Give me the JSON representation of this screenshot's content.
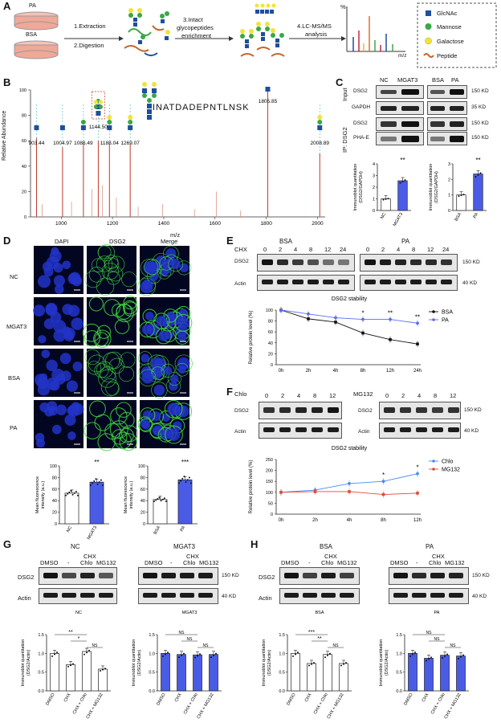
{
  "panels": {
    "A": "A",
    "B": "B",
    "C": "C",
    "D": "D",
    "E": "E",
    "F": "F",
    "G": "G",
    "H": "H"
  },
  "panelA": {
    "dish1": "PA",
    "dish2": "BSA",
    "steps": [
      "1.Extraction",
      "2.Digestion",
      "3.Intact glycopeptides enrichment",
      "4.LC-MS/MS analysis"
    ],
    "step3_l1": "3.Intact",
    "step3_l2": "glycopeptides",
    "step3_l3": "enrichment",
    "step4_l1": "4.LC-MS/MS",
    "step4_l2": "analysis",
    "axis_y": "%",
    "axis_x": "m/z",
    "legend": [
      {
        "label": "GlcNAc",
        "color": "#1f4e9c"
      },
      {
        "label": "Mannose",
        "color": "#3aa845"
      },
      {
        "label": "Galactose",
        "color": "#f2e33a"
      },
      {
        "label": "Peptide",
        "color": "#c86428"
      }
    ]
  },
  "panelB": {
    "ylabel": "Relative Abundance",
    "xlabel": "m/z",
    "peptide": "INATDADEPNTLNSK",
    "peak_labels": [
      "903.44",
      "1004.97",
      "1086.49",
      "1144.50",
      "1188.04",
      "1269.07",
      "1805.85",
      "2008.89"
    ],
    "xticks": [
      "1000",
      "1200",
      "1400",
      "1600",
      "1800",
      "2000"
    ],
    "yticks": [
      "100",
      "80",
      "60",
      "40",
      "20",
      "0"
    ],
    "chart_data": {
      "type": "bar",
      "xlabel": "m/z",
      "ylabel": "Relative Abundance",
      "xlim": [
        880,
        2030
      ],
      "ylim": [
        0,
        100
      ],
      "peaks": [
        {
          "x": 903.44,
          "y": 62
        },
        {
          "x": 1004.97,
          "y": 55
        },
        {
          "x": 1086.49,
          "y": 58
        },
        {
          "x": 1144.5,
          "y": 60
        },
        {
          "x": 1188.04,
          "y": 57
        },
        {
          "x": 1269.07,
          "y": 57
        },
        {
          "x": 1805.85,
          "y": 100
        },
        {
          "x": 2008.89,
          "y": 50
        },
        {
          "x": 925,
          "y": 10
        },
        {
          "x": 1040,
          "y": 12
        },
        {
          "x": 1120,
          "y": 22
        },
        {
          "x": 1160,
          "y": 25
        },
        {
          "x": 1215,
          "y": 15
        },
        {
          "x": 1300,
          "y": 8
        },
        {
          "x": 1395,
          "y": 10
        },
        {
          "x": 1520,
          "y": 6
        },
        {
          "x": 1605,
          "y": 20
        },
        {
          "x": 1700,
          "y": 5
        }
      ]
    }
  },
  "panelC": {
    "input": "Input",
    "ip": "IP: DSG2",
    "rows": [
      "DSG2",
      "GAPDH",
      "DSG2",
      "PHA-E"
    ],
    "lanes_left": [
      "NC",
      "MGAT3"
    ],
    "lanes_right": [
      "BSA",
      "PA"
    ],
    "kd": [
      "150 KD",
      "35 KD",
      "150 KD",
      "150 KD"
    ],
    "bar1": {
      "ylabel_l1": "Immunoblot quantitation",
      "ylabel_l2": "(DSG2/GAPDH)",
      "yticks": [
        "4",
        "3",
        "2",
        "1",
        "0"
      ],
      "sig": "**",
      "categories": [
        "NC",
        "MGAT3"
      ],
      "values": [
        1,
        2.55
      ],
      "ylim": [
        0,
        4
      ]
    },
    "bar2": {
      "ylabel_l1": "Immunoblot quantitation",
      "ylabel_l2": "(DSG2/GAPDH)",
      "yticks": [
        "3",
        "2",
        "1",
        "0"
      ],
      "sig": "**",
      "categories": [
        "BSA",
        "PA"
      ],
      "values": [
        1,
        2.35
      ],
      "ylim": [
        0,
        3
      ]
    }
  },
  "panelD": {
    "cols": [
      "DAPI",
      "DSG2",
      "Merge"
    ],
    "rows": [
      "NC",
      "MGAT3",
      "BSA",
      "PA"
    ],
    "bar1": {
      "ylabel_l1": "Mean fluorescence",
      "ylabel_l2": "intensity (a.u.)",
      "yticks": [
        "100",
        "80",
        "60",
        "40",
        "20",
        "0"
      ],
      "sig": "**",
      "categories": [
        "NC",
        "MGAT3"
      ],
      "values": [
        53,
        72
      ],
      "ylim": [
        0,
        100
      ]
    },
    "bar2": {
      "ylabel_l1": "Mean fluorescence",
      "ylabel_l2": "intensity (a.u.)",
      "yticks": [
        "100",
        "80",
        "60",
        "40",
        "20",
        "0"
      ],
      "sig": "***",
      "categories": [
        "BSA",
        "PA"
      ],
      "values": [
        42,
        76
      ],
      "ylim": [
        0,
        100
      ]
    }
  },
  "panelE": {
    "treat": "CHX",
    "g1": "BSA",
    "g2": "PA",
    "times": [
      "0",
      "2",
      "4",
      "8",
      "12",
      "24"
    ],
    "rows": [
      "DSG2",
      "Actin"
    ],
    "kd": [
      "150 KD",
      "40 KD"
    ],
    "chart_title": "DSG2 stability",
    "ylabel": "Relative protein level (%)",
    "xcats": [
      "0h",
      "2h",
      "4h",
      "8h",
      "12h",
      "24h"
    ],
    "yticks": [
      "100",
      "80",
      "60",
      "40",
      "20",
      "0"
    ],
    "sigs": [
      "*",
      "**",
      "**"
    ],
    "chart_data": {
      "type": "line",
      "categories": [
        "0h",
        "2h",
        "4h",
        "8h",
        "12h",
        "24h"
      ],
      "ylim": [
        0,
        100
      ],
      "series": [
        {
          "name": "BSA",
          "values": [
            100,
            84,
            78,
            58,
            46,
            38
          ]
        },
        {
          "name": "PA",
          "values": [
            100,
            93,
            86,
            83,
            83,
            76
          ]
        }
      ]
    }
  },
  "panelF": {
    "t1": "Chlo",
    "t2": "MG132",
    "times": [
      "0",
      "2",
      "4",
      "8",
      "12"
    ],
    "rows": [
      "DSG2",
      "Actin"
    ],
    "kd": [
      "150 KD",
      "40 KD"
    ],
    "chart_title": "DSG2 stability",
    "ylabel": "Relative protein level (%)",
    "xcats": [
      "0h",
      "2h",
      "4h",
      "8h",
      "12h"
    ],
    "yticks": [
      "250",
      "200",
      "150",
      "100",
      "50",
      "0"
    ],
    "sigs": [
      "*",
      "*"
    ],
    "chart_data": {
      "type": "line",
      "categories": [
        "0h",
        "2h",
        "4h",
        "8h",
        "12h"
      ],
      "ylim": [
        0,
        250
      ],
      "series": [
        {
          "name": "Chlo",
          "values": [
            100,
            110,
            140,
            150,
            185
          ]
        },
        {
          "name": "MG132",
          "values": [
            100,
            103,
            103,
            90,
            96
          ]
        }
      ]
    }
  },
  "panelG": {
    "g1": "NC",
    "g2": "MGAT3",
    "dmso": "DMSO",
    "chx": "CHX",
    "lanes": [
      "-",
      "Chlo",
      "MG132"
    ],
    "rows": [
      "DSG2",
      "Actin"
    ],
    "kd": [
      "150 KD",
      "40 KD"
    ],
    "bar1": {
      "title": "NC",
      "ylabel_l1": "Immunoblot quantitation",
      "ylabel_l2": "(DSG2/Actin)",
      "yticks": [
        "1.5",
        "1.0",
        "0.5",
        "0.0"
      ],
      "sigs": [
        "**",
        "*",
        "NS"
      ],
      "categories": [
        "DMSO",
        "CHX",
        "CHX + Chlo",
        "CHX + MG132"
      ],
      "values": [
        1.0,
        0.7,
        1.05,
        0.58
      ],
      "ylim": [
        0,
        1.5
      ],
      "color": "#ffffff"
    },
    "bar2": {
      "title": "MGAT3",
      "ylabel_l1": "Immunoblot quantitation",
      "ylabel_l2": "(DSG2/Actin)",
      "yticks": [
        "1.5",
        "1.0",
        "0.5",
        "0.0"
      ],
      "sigs": [
        "NS",
        "NS",
        "NS"
      ],
      "categories": [
        "DMSO",
        "CHX",
        "CHX + Chlo",
        "CHX + MG132"
      ],
      "values": [
        1.0,
        0.97,
        0.96,
        0.97
      ],
      "ylim": [
        0,
        1.5
      ],
      "color": "#4a5ce6"
    }
  },
  "panelH": {
    "g1": "BSA",
    "g2": "PA",
    "dmso": "DMSO",
    "chx": "CHX",
    "lanes": [
      "-",
      "Chlo",
      "MG132"
    ],
    "rows": [
      "DSG2",
      "Actin"
    ],
    "kd": [
      "150 KD",
      "40 KD"
    ],
    "bar1": {
      "title": "BSA",
      "ylabel_l1": "Immunoblot quantitation",
      "ylabel_l2": "(DSG2/Actin)",
      "yticks": [
        "1.5",
        "1.0",
        "0.5",
        "0.0"
      ],
      "sigs": [
        "***",
        "**",
        "NS"
      ],
      "categories": [
        "DMSO",
        "CHX",
        "CHX + Chlo",
        "CHX + MG132"
      ],
      "values": [
        1.0,
        0.73,
        0.97,
        0.73
      ],
      "ylim": [
        0,
        1.5
      ],
      "color": "#ffffff"
    },
    "bar2": {
      "title": "PA",
      "ylabel_l1": "Immunoblot quantitation",
      "ylabel_l2": "(DSG2/Actin)",
      "yticks": [
        "1.5",
        "1.0",
        "0.5",
        "0.0"
      ],
      "sigs": [
        "NS",
        "NS",
        "NS"
      ],
      "categories": [
        "DMSO",
        "CHX",
        "CHX + Chlo",
        "CHX + MG132"
      ],
      "values": [
        1.0,
        0.87,
        0.95,
        0.93
      ],
      "ylim": [
        0,
        1.5
      ],
      "color": "#4a5ce6"
    }
  }
}
